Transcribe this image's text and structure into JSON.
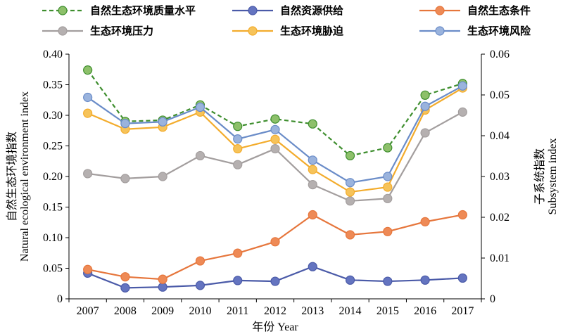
{
  "chart_data": {
    "type": "line",
    "x": [
      "2007",
      "2008",
      "2009",
      "2010",
      "2011",
      "2012",
      "2013",
      "2014",
      "2015",
      "2016",
      "2017"
    ],
    "xlabel": "年份 Year",
    "ylabel_left": [
      "自然生态环境指数",
      "Natural ecological environment index"
    ],
    "ylabel_right": [
      "子系统指数",
      "Subsystem index"
    ],
    "ylim_left": [
      0,
      0.4
    ],
    "ylim_right": [
      0,
      0.06
    ],
    "yticks_left": [
      "0",
      "0.05",
      "0.10",
      "0.15",
      "0.20",
      "0.25",
      "0.30",
      "0.35",
      "0.40"
    ],
    "yticks_right": [
      "0",
      "0.01",
      "0.02",
      "0.03",
      "0.04",
      "0.05",
      "0.06"
    ],
    "grid": false,
    "legend_position": "top",
    "series": [
      {
        "name": "自然生态环境质量水平",
        "axis": "left",
        "color": "#3e8e2e",
        "marker": "#8dc06a",
        "dashed": true,
        "values": [
          0.374,
          0.29,
          0.292,
          0.317,
          0.282,
          0.294,
          0.286,
          0.234,
          0.247,
          0.333,
          0.352
        ]
      },
      {
        "name": "自然资源供给",
        "axis": "right",
        "color": "#4a5aa8",
        "marker": "#6474c0",
        "dashed": false,
        "values": [
          0.0063,
          0.0027,
          0.0029,
          0.0033,
          0.0045,
          0.0043,
          0.0079,
          0.0046,
          0.0043,
          0.0046,
          0.0051
        ]
      },
      {
        "name": "自然生态条件",
        "axis": "right",
        "color": "#e6763c",
        "marker": "#ee8a56",
        "dashed": false,
        "values": [
          0.0072,
          0.0054,
          0.0048,
          0.0093,
          0.0112,
          0.014,
          0.0206,
          0.0157,
          0.0165,
          0.0189,
          0.0206
        ]
      },
      {
        "name": "生态环境压力",
        "axis": "right",
        "color": "#a39e9e",
        "marker": "#b5b0b0",
        "dashed": false,
        "values": [
          0.0307,
          0.0295,
          0.03,
          0.0351,
          0.0329,
          0.0368,
          0.028,
          0.024,
          0.0246,
          0.0407,
          0.0458
        ]
      },
      {
        "name": "生态环境胁迫",
        "axis": "right",
        "color": "#f3ac2c",
        "marker": "#f6c35a",
        "dashed": false,
        "values": [
          0.0455,
          0.0416,
          0.0421,
          0.0458,
          0.0368,
          0.0391,
          0.0317,
          0.0262,
          0.0274,
          0.0463,
          0.0517
        ]
      },
      {
        "name": "生态环境风险",
        "axis": "right",
        "color": "#6a8cc8",
        "marker": "#9ab3dd",
        "dashed": false,
        "values": [
          0.0494,
          0.043,
          0.0434,
          0.047,
          0.0392,
          0.0415,
          0.034,
          0.0285,
          0.03,
          0.0472,
          0.0522
        ]
      }
    ]
  }
}
